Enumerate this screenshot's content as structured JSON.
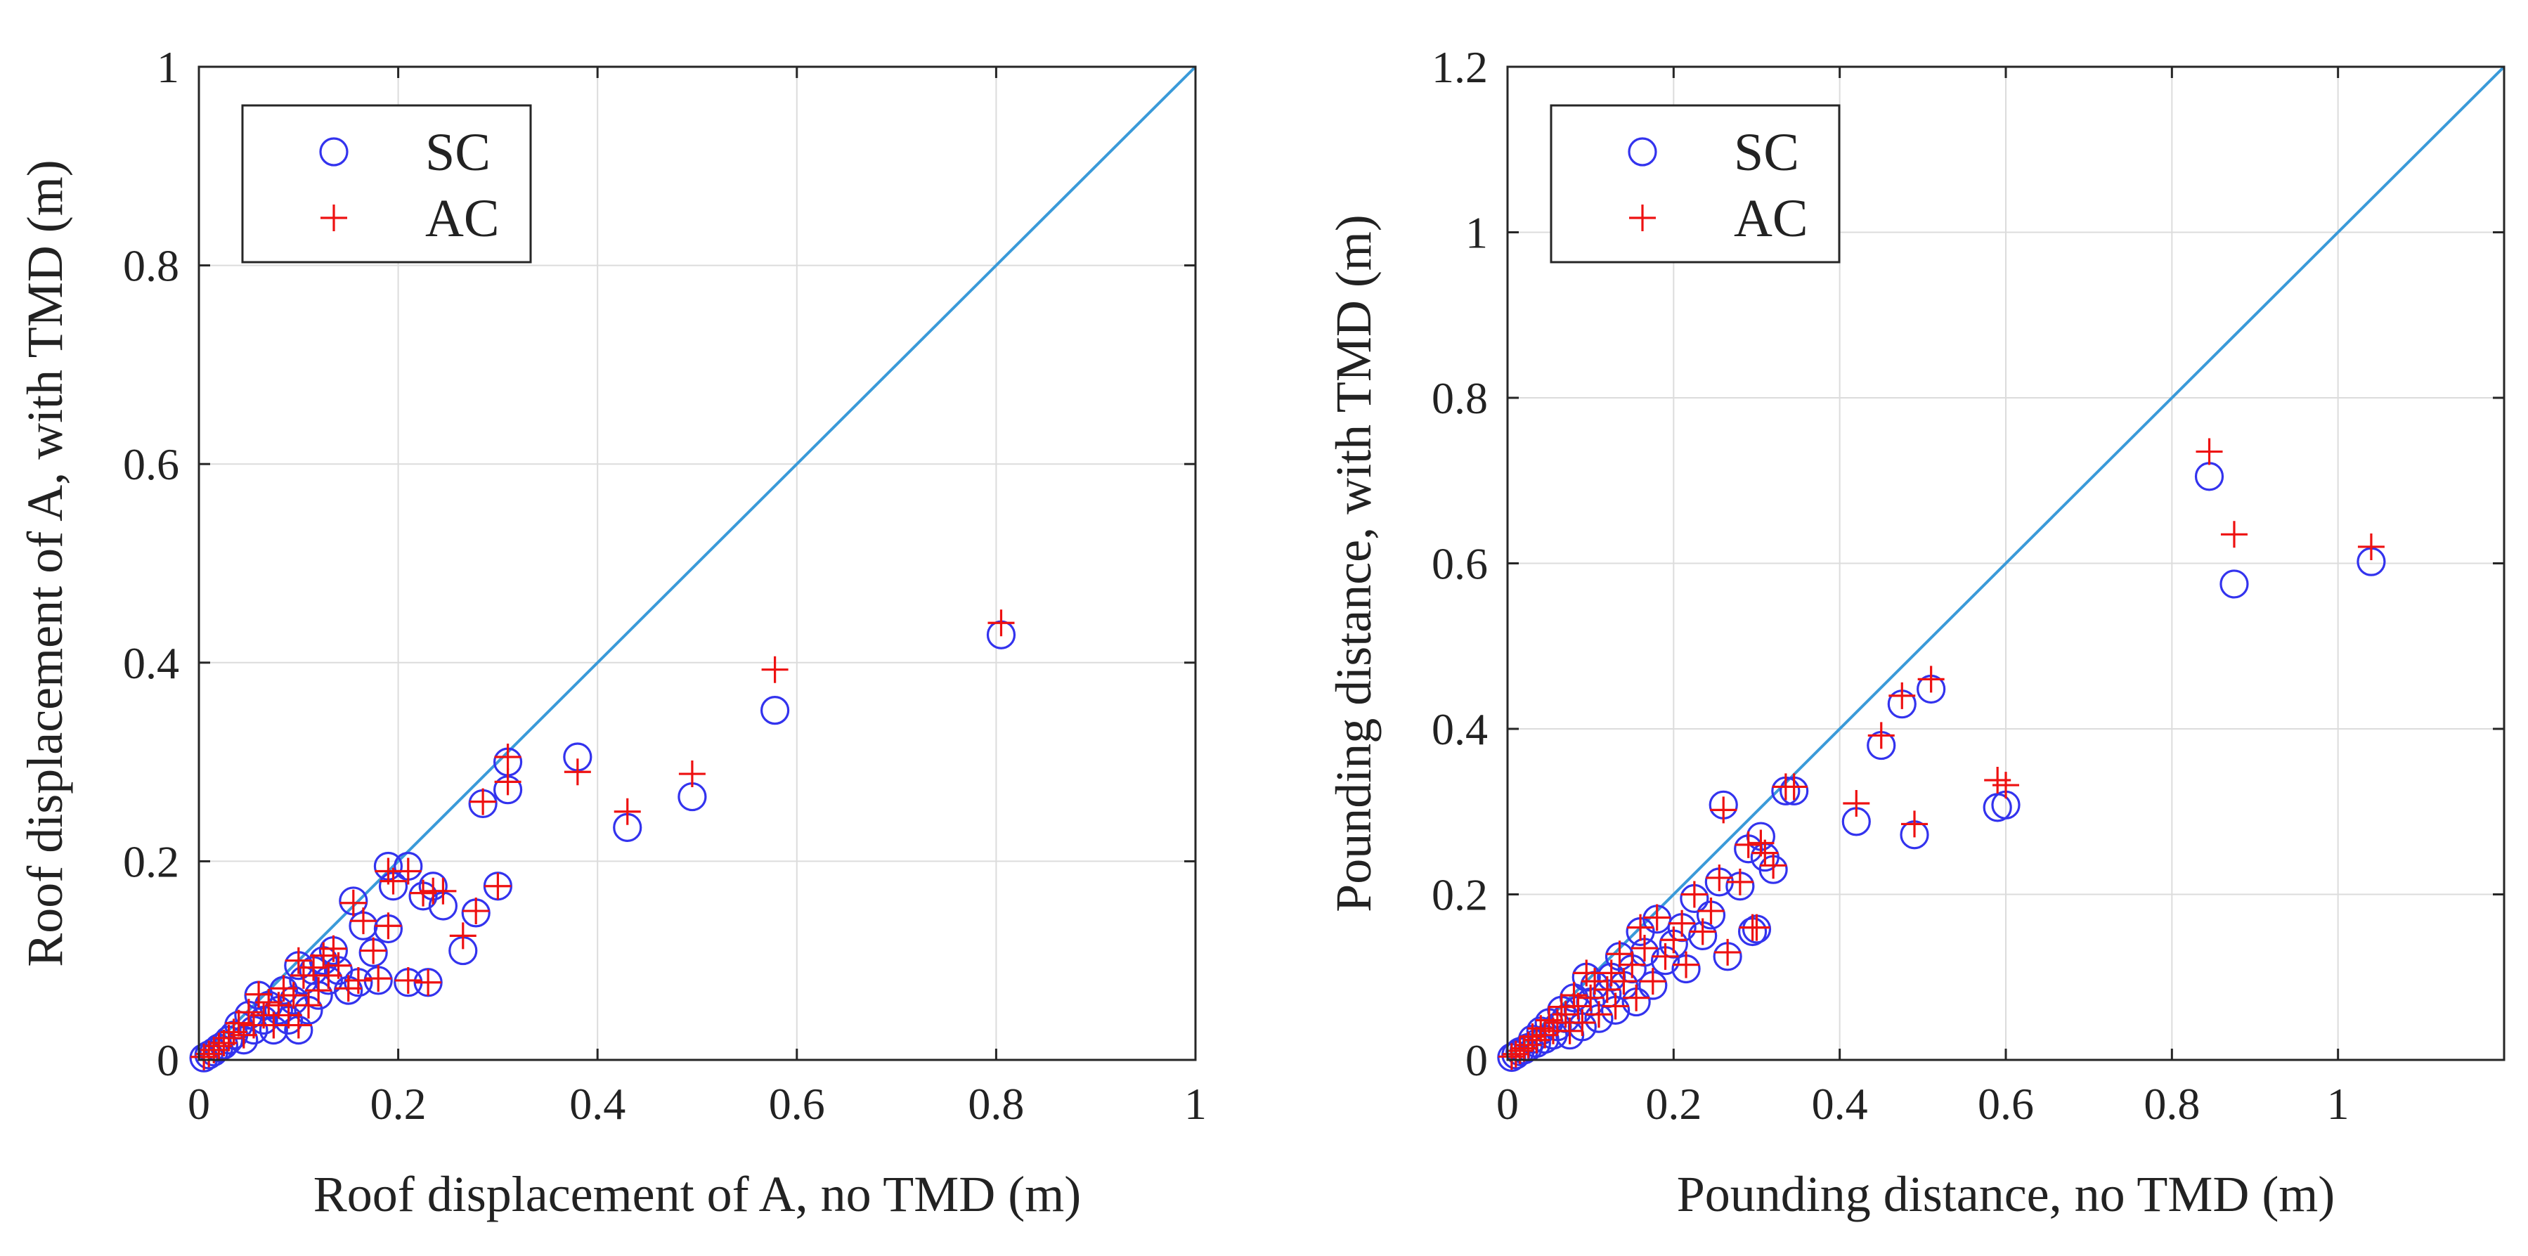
{
  "chart_data": [
    {
      "type": "scatter",
      "xlabel": "Roof displacement of A, no TMD (m)",
      "ylabel": "Roof displacement of A, with TMD (m)",
      "xlim": [
        0,
        1
      ],
      "ylim": [
        0,
        1
      ],
      "xticks": [
        0,
        0.2,
        0.4,
        0.6,
        0.8,
        1
      ],
      "yticks": [
        0,
        0.2,
        0.4,
        0.6,
        0.8,
        1
      ],
      "xtick_labels": [
        "0",
        "0.2",
        "0.4",
        "0.6",
        "0.8",
        "1"
      ],
      "ytick_labels": [
        "0",
        "0.2",
        "0.4",
        "0.6",
        "0.8",
        "1"
      ],
      "grid": true,
      "legend_position": "top-left",
      "reference_line": {
        "name": "y = x",
        "color": "#3a9ad9",
        "points": [
          [
            0,
            0
          ],
          [
            1,
            1
          ]
        ]
      },
      "series": [
        {
          "name": "SC",
          "marker": "circle",
          "color": "#3333ee",
          "points": [
            [
              0.805,
              0.428
            ],
            [
              0.578,
              0.352
            ],
            [
              0.495,
              0.265
            ],
            [
              0.43,
              0.234
            ],
            [
              0.38,
              0.305
            ],
            [
              0.31,
              0.3
            ],
            [
              0.31,
              0.272
            ],
            [
              0.3,
              0.175
            ],
            [
              0.285,
              0.258
            ],
            [
              0.278,
              0.148
            ],
            [
              0.265,
              0.11
            ],
            [
              0.245,
              0.155
            ],
            [
              0.235,
              0.175
            ],
            [
              0.23,
              0.078
            ],
            [
              0.225,
              0.165
            ],
            [
              0.21,
              0.195
            ],
            [
              0.21,
              0.078
            ],
            [
              0.195,
              0.175
            ],
            [
              0.19,
              0.195
            ],
            [
              0.19,
              0.132
            ],
            [
              0.18,
              0.08
            ],
            [
              0.175,
              0.108
            ],
            [
              0.165,
              0.135
            ],
            [
              0.16,
              0.078
            ],
            [
              0.155,
              0.16
            ],
            [
              0.15,
              0.07
            ],
            [
              0.14,
              0.09
            ],
            [
              0.135,
              0.11
            ],
            [
              0.13,
              0.08
            ],
            [
              0.125,
              0.1
            ],
            [
              0.12,
              0.065
            ],
            [
              0.115,
              0.09
            ],
            [
              0.11,
              0.05
            ],
            [
              0.105,
              0.08
            ],
            [
              0.1,
              0.03
            ],
            [
              0.1,
              0.095
            ],
            [
              0.095,
              0.06
            ],
            [
              0.09,
              0.04
            ],
            [
              0.085,
              0.07
            ],
            [
              0.08,
              0.05
            ],
            [
              0.075,
              0.03
            ],
            [
              0.07,
              0.055
            ],
            [
              0.065,
              0.04
            ],
            [
              0.06,
              0.065
            ],
            [
              0.055,
              0.03
            ],
            [
              0.05,
              0.045
            ],
            [
              0.045,
              0.02
            ],
            [
              0.04,
              0.035
            ],
            [
              0.035,
              0.025
            ],
            [
              0.03,
              0.02
            ],
            [
              0.025,
              0.015
            ],
            [
              0.02,
              0.012
            ],
            [
              0.015,
              0.008
            ],
            [
              0.01,
              0.005
            ],
            [
              0.005,
              0.002
            ]
          ]
        },
        {
          "name": "AC",
          "marker": "plus",
          "color": "#ee1111",
          "points": [
            [
              0.805,
              0.44
            ],
            [
              0.578,
              0.393
            ],
            [
              0.495,
              0.288
            ],
            [
              0.43,
              0.25
            ],
            [
              0.38,
              0.29
            ],
            [
              0.31,
              0.305
            ],
            [
              0.31,
              0.28
            ],
            [
              0.3,
              0.175
            ],
            [
              0.285,
              0.26
            ],
            [
              0.278,
              0.15
            ],
            [
              0.265,
              0.125
            ],
            [
              0.245,
              0.17
            ],
            [
              0.235,
              0.17
            ],
            [
              0.23,
              0.078
            ],
            [
              0.225,
              0.168
            ],
            [
              0.21,
              0.19
            ],
            [
              0.21,
              0.08
            ],
            [
              0.195,
              0.18
            ],
            [
              0.19,
              0.19
            ],
            [
              0.19,
              0.135
            ],
            [
              0.18,
              0.082
            ],
            [
              0.175,
              0.11
            ],
            [
              0.165,
              0.14
            ],
            [
              0.16,
              0.08
            ],
            [
              0.155,
              0.158
            ],
            [
              0.15,
              0.072
            ],
            [
              0.14,
              0.095
            ],
            [
              0.135,
              0.112
            ],
            [
              0.13,
              0.085
            ],
            [
              0.125,
              0.105
            ],
            [
              0.12,
              0.07
            ],
            [
              0.115,
              0.093
            ],
            [
              0.11,
              0.055
            ],
            [
              0.105,
              0.085
            ],
            [
              0.1,
              0.035
            ],
            [
              0.1,
              0.1
            ],
            [
              0.095,
              0.065
            ],
            [
              0.09,
              0.045
            ],
            [
              0.085,
              0.072
            ],
            [
              0.08,
              0.055
            ],
            [
              0.075,
              0.035
            ],
            [
              0.07,
              0.058
            ],
            [
              0.065,
              0.045
            ],
            [
              0.06,
              0.066
            ],
            [
              0.055,
              0.035
            ],
            [
              0.05,
              0.048
            ],
            [
              0.045,
              0.025
            ],
            [
              0.04,
              0.037
            ],
            [
              0.035,
              0.028
            ],
            [
              0.03,
              0.022
            ],
            [
              0.025,
              0.017
            ],
            [
              0.02,
              0.014
            ],
            [
              0.015,
              0.01
            ],
            [
              0.01,
              0.006
            ],
            [
              0.005,
              0.003
            ]
          ]
        }
      ]
    },
    {
      "type": "scatter",
      "xlabel": "Pounding distance, no TMD (m)",
      "ylabel": "Pounding distance, with TMD (m)",
      "xlim": [
        0,
        1.2
      ],
      "ylim": [
        0,
        1.2
      ],
      "xticks": [
        0,
        0.2,
        0.4,
        0.6,
        0.8,
        1
      ],
      "yticks": [
        0,
        0.2,
        0.4,
        0.6,
        0.8,
        1,
        1.2
      ],
      "xtick_labels": [
        "0",
        "0.2",
        "0.4",
        "0.6",
        "0.8",
        "1"
      ],
      "ytick_labels": [
        "0",
        "0.2",
        "0.4",
        "0.6",
        "0.8",
        "1",
        "1.2"
      ],
      "grid": true,
      "legend_position": "top-left",
      "reference_line": {
        "name": "y = x",
        "color": "#3a9ad9",
        "points": [
          [
            0,
            0
          ],
          [
            1.2,
            1.2
          ]
        ]
      },
      "series": [
        {
          "name": "SC",
          "marker": "circle",
          "color": "#3333ee",
          "points": [
            [
              1.04,
              0.602
            ],
            [
              0.875,
              0.575
            ],
            [
              0.845,
              0.705
            ],
            [
              0.6,
              0.308
            ],
            [
              0.59,
              0.305
            ],
            [
              0.51,
              0.448
            ],
            [
              0.49,
              0.272
            ],
            [
              0.475,
              0.43
            ],
            [
              0.45,
              0.38
            ],
            [
              0.42,
              0.288
            ],
            [
              0.345,
              0.325
            ],
            [
              0.335,
              0.325
            ],
            [
              0.32,
              0.23
            ],
            [
              0.31,
              0.245
            ],
            [
              0.305,
              0.27
            ],
            [
              0.3,
              0.158
            ],
            [
              0.295,
              0.155
            ],
            [
              0.29,
              0.255
            ],
            [
              0.28,
              0.21
            ],
            [
              0.265,
              0.125
            ],
            [
              0.26,
              0.308
            ],
            [
              0.255,
              0.215
            ],
            [
              0.245,
              0.175
            ],
            [
              0.235,
              0.15
            ],
            [
              0.225,
              0.195
            ],
            [
              0.215,
              0.11
            ],
            [
              0.21,
              0.16
            ],
            [
              0.2,
              0.14
            ],
            [
              0.19,
              0.12
            ],
            [
              0.18,
              0.17
            ],
            [
              0.175,
              0.09
            ],
            [
              0.165,
              0.13
            ],
            [
              0.16,
              0.155
            ],
            [
              0.155,
              0.07
            ],
            [
              0.15,
              0.11
            ],
            [
              0.14,
              0.09
            ],
            [
              0.135,
              0.125
            ],
            [
              0.13,
              0.06
            ],
            [
              0.125,
              0.1
            ],
            [
              0.12,
              0.08
            ],
            [
              0.11,
              0.05
            ],
            [
              0.105,
              0.09
            ],
            [
              0.1,
              0.07
            ],
            [
              0.095,
              0.1
            ],
            [
              0.09,
              0.04
            ],
            [
              0.085,
              0.06
            ],
            [
              0.08,
              0.075
            ],
            [
              0.075,
              0.03
            ],
            [
              0.07,
              0.05
            ],
            [
              0.065,
              0.06
            ],
            [
              0.06,
              0.04
            ],
            [
              0.055,
              0.03
            ],
            [
              0.05,
              0.045
            ],
            [
              0.045,
              0.025
            ],
            [
              0.04,
              0.035
            ],
            [
              0.035,
              0.02
            ],
            [
              0.03,
              0.025
            ],
            [
              0.025,
              0.015
            ],
            [
              0.02,
              0.012
            ],
            [
              0.015,
              0.01
            ],
            [
              0.01,
              0.006
            ],
            [
              0.005,
              0.003
            ]
          ]
        },
        {
          "name": "AC",
          "marker": "plus",
          "color": "#ee1111",
          "points": [
            [
              1.04,
              0.62
            ],
            [
              0.875,
              0.635
            ],
            [
              0.845,
              0.735
            ],
            [
              0.6,
              0.332
            ],
            [
              0.59,
              0.338
            ],
            [
              0.51,
              0.46
            ],
            [
              0.49,
              0.285
            ],
            [
              0.475,
              0.44
            ],
            [
              0.45,
              0.392
            ],
            [
              0.42,
              0.31
            ],
            [
              0.345,
              0.33
            ],
            [
              0.335,
              0.33
            ],
            [
              0.32,
              0.235
            ],
            [
              0.31,
              0.25
            ],
            [
              0.305,
              0.262
            ],
            [
              0.3,
              0.16
            ],
            [
              0.295,
              0.16
            ],
            [
              0.29,
              0.26
            ],
            [
              0.28,
              0.215
            ],
            [
              0.265,
              0.13
            ],
            [
              0.26,
              0.302
            ],
            [
              0.255,
              0.22
            ],
            [
              0.245,
              0.18
            ],
            [
              0.235,
              0.155
            ],
            [
              0.225,
              0.2
            ],
            [
              0.215,
              0.115
            ],
            [
              0.21,
              0.165
            ],
            [
              0.2,
              0.145
            ],
            [
              0.19,
              0.125
            ],
            [
              0.18,
              0.172
            ],
            [
              0.175,
              0.095
            ],
            [
              0.165,
              0.135
            ],
            [
              0.16,
              0.16
            ],
            [
              0.155,
              0.075
            ],
            [
              0.15,
              0.115
            ],
            [
              0.14,
              0.095
            ],
            [
              0.135,
              0.128
            ],
            [
              0.13,
              0.065
            ],
            [
              0.125,
              0.105
            ],
            [
              0.12,
              0.085
            ],
            [
              0.11,
              0.055
            ],
            [
              0.105,
              0.095
            ],
            [
              0.1,
              0.075
            ],
            [
              0.095,
              0.105
            ],
            [
              0.09,
              0.045
            ],
            [
              0.085,
              0.065
            ],
            [
              0.08,
              0.078
            ],
            [
              0.075,
              0.035
            ],
            [
              0.07,
              0.055
            ],
            [
              0.065,
              0.064
            ],
            [
              0.06,
              0.045
            ],
            [
              0.055,
              0.035
            ],
            [
              0.05,
              0.048
            ],
            [
              0.045,
              0.03
            ],
            [
              0.04,
              0.038
            ],
            [
              0.035,
              0.024
            ],
            [
              0.03,
              0.028
            ],
            [
              0.025,
              0.018
            ],
            [
              0.02,
              0.014
            ],
            [
              0.015,
              0.011
            ],
            [
              0.01,
              0.007
            ],
            [
              0.005,
              0.004
            ]
          ]
        }
      ]
    }
  ]
}
